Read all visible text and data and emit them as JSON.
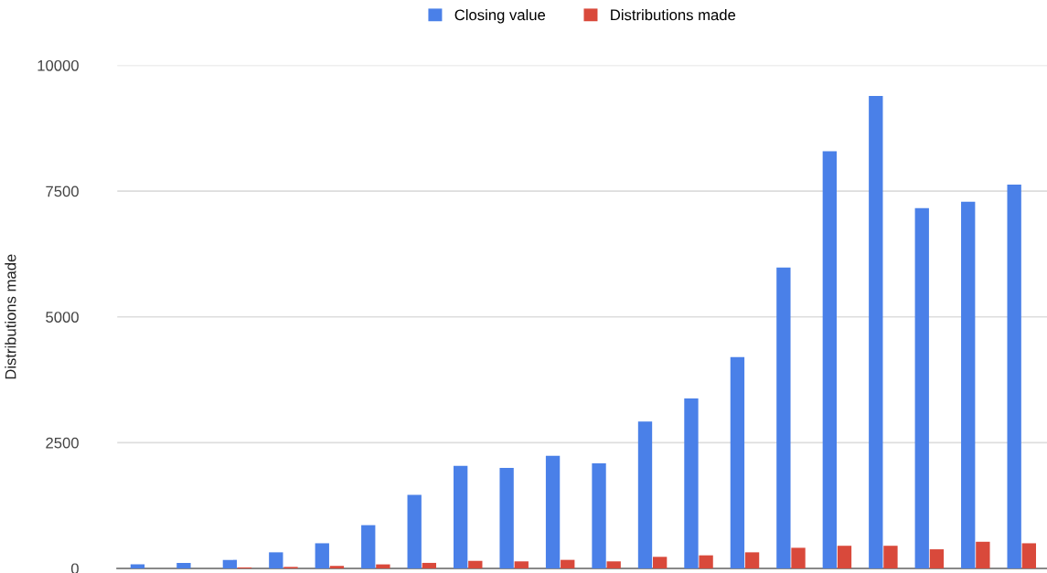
{
  "chart_data": {
    "type": "bar",
    "ylabel": "Distributions made",
    "categories": [
      null,
      null,
      null,
      null,
      null,
      null,
      null,
      null,
      null,
      null,
      null,
      null,
      null,
      null,
      null,
      null,
      null,
      null,
      null,
      null
    ],
    "series": [
      {
        "name": "Closing value",
        "color": "#4a80e8",
        "values": [
          80,
          110,
          170,
          320,
          500,
          860,
          1460,
          2040,
          2000,
          2240,
          2090,
          2920,
          3380,
          4200,
          5980,
          8290,
          9390,
          7160,
          7290,
          7630
        ]
      },
      {
        "name": "Distributions made",
        "color": "#d9493b",
        "values": [
          null,
          null,
          20,
          30,
          50,
          80,
          110,
          150,
          140,
          170,
          140,
          230,
          260,
          320,
          410,
          450,
          450,
          380,
          530,
          500
        ]
      }
    ],
    "ylim": [
      0,
      10000
    ],
    "yticks": [
      0,
      2500,
      5000,
      7500,
      10000
    ],
    "grid": "y",
    "legend": "top"
  }
}
